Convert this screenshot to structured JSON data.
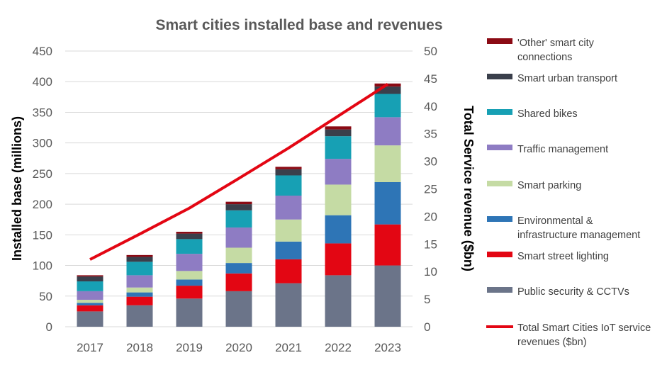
{
  "chart_data": {
    "type": "bar",
    "stacked": true,
    "title": "Smart cities installed base and revenues",
    "ylabel": "Installed base (millions)",
    "y2label": "Total Service revenue ($bn)",
    "xlabel": "",
    "ylim": [
      0,
      450
    ],
    "y2lim": [
      0,
      50
    ],
    "yticks": [
      "0",
      "50",
      "100",
      "150",
      "200",
      "250",
      "300",
      "350",
      "400",
      "450"
    ],
    "y2ticks": [
      "0",
      "5",
      "10",
      "15",
      "20",
      "25",
      "30",
      "35",
      "40",
      "45",
      "50"
    ],
    "grid": true,
    "legend_position": "right",
    "categories": [
      "2017",
      "2018",
      "2019",
      "2020",
      "2021",
      "2022",
      "2023"
    ],
    "series": [
      {
        "name": "Public security & CCTVs",
        "color": "#6b7489",
        "values": [
          25,
          35,
          46,
          58,
          71,
          84,
          100
        ]
      },
      {
        "name": "Smart street lighting",
        "color": "#e30613",
        "values": [
          10,
          14,
          21,
          29,
          39,
          52,
          67
        ]
      },
      {
        "name": "Environmental & infrastructure management",
        "color": "#2e75b6",
        "values": [
          4,
          7,
          10,
          17,
          29,
          46,
          69
        ]
      },
      {
        "name": "Smart parking",
        "color": "#c5dba4",
        "values": [
          5,
          8,
          14,
          25,
          36,
          50,
          60
        ]
      },
      {
        "name": "Traffic management",
        "color": "#8e7cc3",
        "values": [
          14,
          20,
          28,
          33,
          39,
          42,
          46
        ]
      },
      {
        "name": "Shared bikes",
        "color": "#17a0b4",
        "values": [
          16,
          22,
          24,
          28,
          33,
          37,
          38
        ]
      },
      {
        "name": "Smart urban transport",
        "color": "#3a3f4b",
        "values": [
          8,
          8,
          9,
          10,
          10,
          11,
          12
        ]
      },
      {
        "name": "'Other' smart city connections",
        "color": "#8b0a14",
        "values": [
          2,
          3,
          3,
          4,
          4,
          5,
          5
        ]
      }
    ],
    "line_series": {
      "name": "Total Smart Cities IoT service revenues ($bn)",
      "color": "#e30613",
      "axis": "secondary",
      "values": [
        12.2,
        16.8,
        21.5,
        26.9,
        32.4,
        38.2,
        44.0
      ]
    }
  }
}
